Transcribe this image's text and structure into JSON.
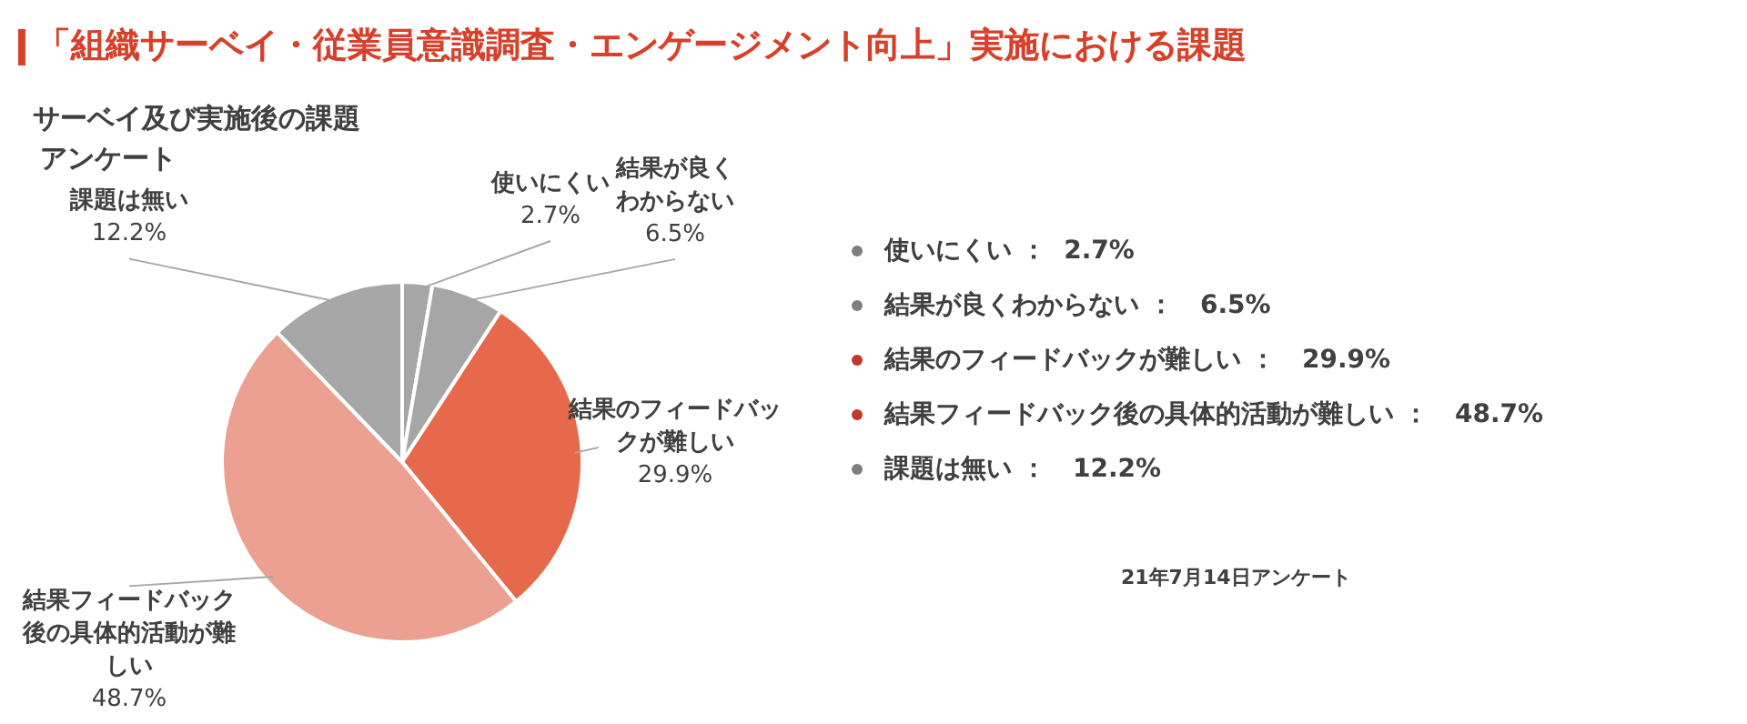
{
  "chart_data": {
    "type": "pie",
    "title": "「組織サーベイ・従業員意識調査・エンゲージメント向上」実施における課題",
    "subtitle": "サーベイ及び実施後の課題",
    "categories": [
      "使いにくい",
      "結果が良くわからない",
      "結果のフィードバックが難しい",
      "結果フィードバック後の具体的活動が難しい",
      "課題は無い"
    ],
    "values": [
      2.7,
      6.5,
      29.9,
      48.7,
      12.2
    ],
    "value_labels": [
      "2.7%",
      "6.5%",
      "29.9%",
      "48.7%",
      "12.2%"
    ],
    "colors": [
      "#a6a6a6",
      "#a6a6a6",
      "#e5694a",
      "#eba091",
      "#a6a6a6"
    ],
    "annotations": [
      "アンケート",
      "使いにくい ：  2.7%",
      "結果が良くわからない ：   6.5%",
      "結果のフィードバックが難しい ：   29.9%",
      "結果フィードバック後の具体的活動が難しい ：   48.7%",
      "課題は無い ：   12.2%",
      "21年7月14日アンケート"
    ]
  }
}
